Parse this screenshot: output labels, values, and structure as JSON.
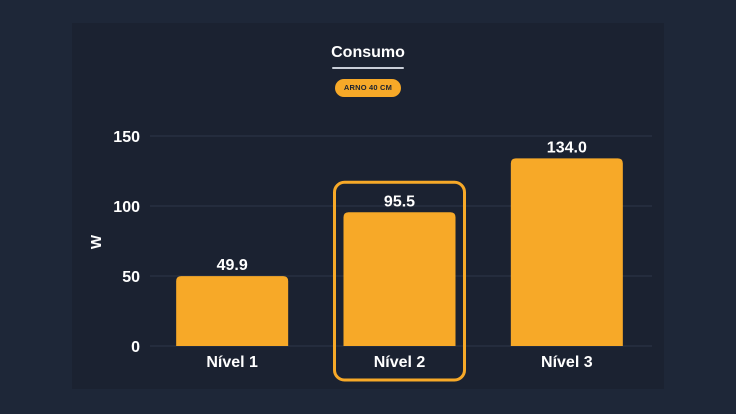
{
  "chart_data": {
    "type": "bar",
    "title": "Consumo",
    "subtitle": "ARNO 40 CM",
    "ylabel": "W",
    "xlabel": "",
    "categories": [
      "Nível 1",
      "Nível 2",
      "Nível 3"
    ],
    "values": [
      49.9,
      95.5,
      134.0
    ],
    "value_labels": [
      "49.9",
      "95.5",
      "134.0"
    ],
    "yticks": [
      "0",
      "50",
      "100",
      "150"
    ],
    "ytick_values": [
      0,
      50,
      100,
      150
    ],
    "ylim": [
      0,
      150
    ],
    "grid": true,
    "highlighted_category": "Nível 2",
    "colors": {
      "bar": "#f7a928",
      "highlight_border": "#f7a928",
      "grid": "#2e3749",
      "text": "#ffffff"
    }
  }
}
